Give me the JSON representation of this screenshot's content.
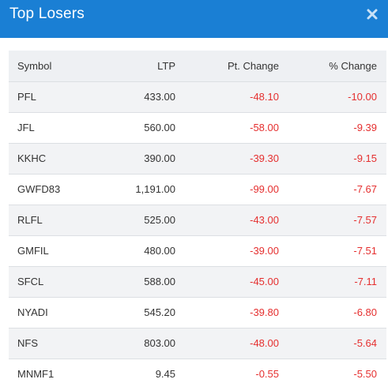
{
  "header": {
    "title": "Top Losers",
    "close_icon": "close-icon"
  },
  "colors": {
    "header_bg": "#1a7fd4",
    "negative": "#e52f2f",
    "row_alt": "#f2f3f5",
    "table_head_bg": "#eef0f3"
  },
  "table": {
    "columns": {
      "symbol": "Symbol",
      "ltp": "LTP",
      "pt_change": "Pt. Change",
      "pct_change": "% Change"
    },
    "rows": [
      {
        "symbol": "PFL",
        "ltp": "433.00",
        "pt_change": "-48.10",
        "pct_change": "-10.00"
      },
      {
        "symbol": "JFL",
        "ltp": "560.00",
        "pt_change": "-58.00",
        "pct_change": "-9.39"
      },
      {
        "symbol": "KKHC",
        "ltp": "390.00",
        "pt_change": "-39.30",
        "pct_change": "-9.15"
      },
      {
        "symbol": "GWFD83",
        "ltp": "1,191.00",
        "pt_change": "-99.00",
        "pct_change": "-7.67"
      },
      {
        "symbol": "RLFL",
        "ltp": "525.00",
        "pt_change": "-43.00",
        "pct_change": "-7.57"
      },
      {
        "symbol": "GMFIL",
        "ltp": "480.00",
        "pt_change": "-39.00",
        "pct_change": "-7.51"
      },
      {
        "symbol": "SFCL",
        "ltp": "588.00",
        "pt_change": "-45.00",
        "pct_change": "-7.11"
      },
      {
        "symbol": "NYADI",
        "ltp": "545.20",
        "pt_change": "-39.80",
        "pct_change": "-6.80"
      },
      {
        "symbol": "NFS",
        "ltp": "803.00",
        "pt_change": "-48.00",
        "pct_change": "-5.64"
      },
      {
        "symbol": "MNMF1",
        "ltp": "9.45",
        "pt_change": "-0.55",
        "pct_change": "-5.50"
      }
    ]
  }
}
